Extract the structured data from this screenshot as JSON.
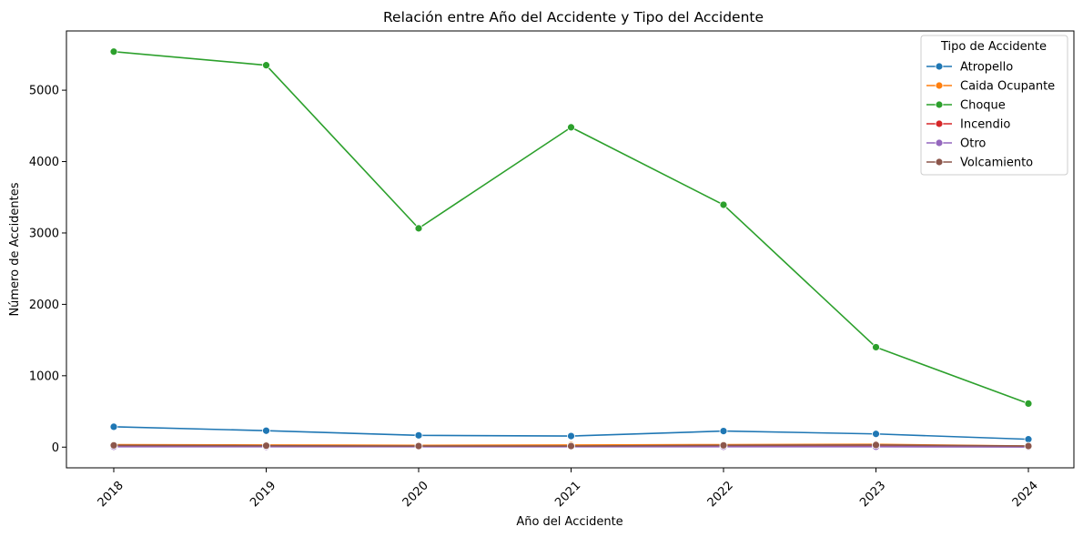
{
  "chart_data": {
    "type": "line",
    "title": "Relación entre Año del Accidente y Tipo del Accidente",
    "xlabel": "Año del Accidente",
    "ylabel": "Número de Accidentes",
    "x": [
      "2018",
      "2019",
      "2020",
      "2021",
      "2022",
      "2023",
      "2024"
    ],
    "yticks": [
      "0",
      "1000",
      "2000",
      "3000",
      "4000",
      "5000"
    ],
    "ylim": [
      -290,
      5830
    ],
    "grid": false,
    "legend": {
      "title": "Tipo de Accidente",
      "placement": "top-right"
    },
    "series": [
      {
        "name": "Atropello",
        "color": "#1f77b4",
        "values": [
          285,
          230,
          165,
          155,
          225,
          185,
          110
        ]
      },
      {
        "name": "Caida Ocupante",
        "color": "#ff7f0e",
        "values": [
          35,
          30,
          25,
          30,
          35,
          40,
          15
        ]
      },
      {
        "name": "Choque",
        "color": "#2ca02c",
        "values": [
          5540,
          5350,
          3065,
          4480,
          3395,
          1400,
          610
        ]
      },
      {
        "name": "Incendio",
        "color": "#d62728",
        "values": [
          10,
          10,
          8,
          10,
          12,
          10,
          5
        ]
      },
      {
        "name": "Otro",
        "color": "#9467bd",
        "values": [
          5,
          5,
          5,
          5,
          5,
          5,
          3
        ]
      },
      {
        "name": "Volcamiento",
        "color": "#8c564b",
        "values": [
          25,
          20,
          15,
          15,
          25,
          30,
          15
        ]
      }
    ]
  }
}
